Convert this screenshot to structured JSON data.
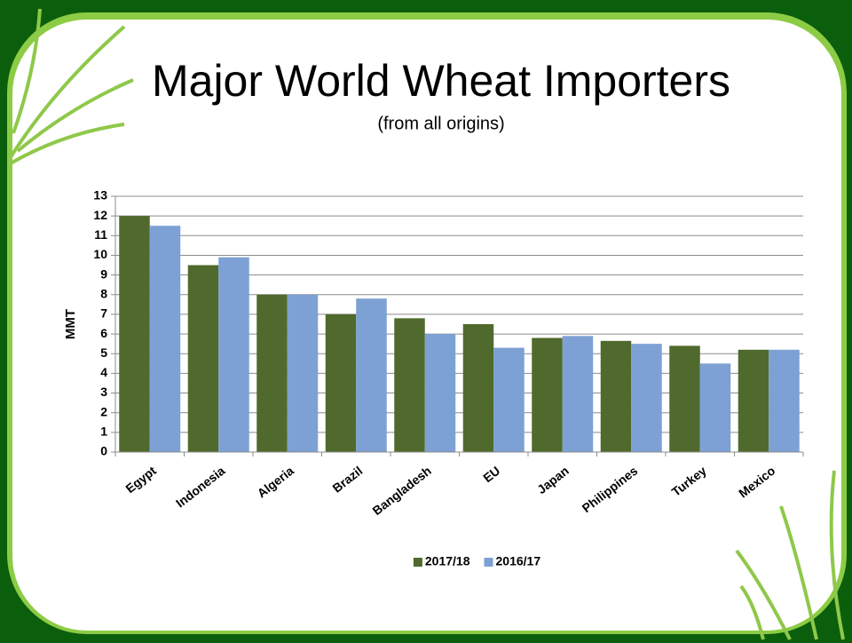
{
  "chart_data": {
    "type": "bar",
    "title": "Major World Wheat Importers",
    "subtitle": "(from all origins)",
    "y_label": "MMT",
    "categories": [
      "Egypt",
      "Indonesia",
      "Algeria",
      "Brazil",
      "Bangladesh",
      "EU",
      "Japan",
      "Philippines",
      "Turkey",
      "Mexico"
    ],
    "series": [
      {
        "name": "2017/18",
        "color": "#4f6a2c",
        "values": [
          12,
          9.5,
          8,
          7,
          6.8,
          6.5,
          5.8,
          5.65,
          5.4,
          5.2
        ]
      },
      {
        "name": "2016/17",
        "color": "#7da1d4",
        "values": [
          11.5,
          9.9,
          8,
          7.8,
          6,
          5.3,
          5.9,
          5.5,
          4.5,
          5.2
        ]
      }
    ],
    "ylim": [
      0,
      13
    ],
    "yticks": [
      0,
      1,
      2,
      3,
      4,
      5,
      6,
      7,
      8,
      9,
      10,
      11,
      12,
      13
    ],
    "grid": true,
    "legend": "bottom"
  }
}
